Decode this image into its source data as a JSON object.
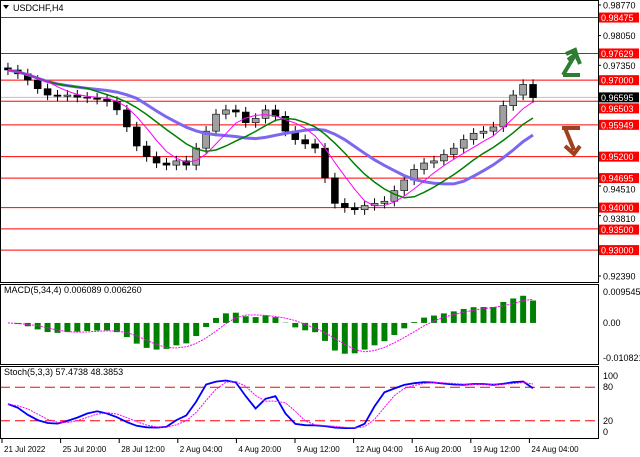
{
  "chart_title": "USDCHF,H4",
  "colors": {
    "level": "#ff0000",
    "candle_bear": "#000000",
    "candle_bull": "#a0a0a0",
    "ma_slow": "#7b68ee",
    "ma_mid": "#008000",
    "ma_fast": "#ff00ff",
    "macd_hist": "#008000",
    "macd_signal": "#ff00ff",
    "stoch_main": "#0000ff",
    "stoch_signal": "#ff00ff",
    "arrow_up": "#2e7d32",
    "arrow_down": "#a0401c"
  },
  "icons": {
    "title_dropdown": "triangle-down-icon",
    "signal_up": "arrow-up-icon",
    "signal_down": "arrow-down-icon"
  },
  "price_axis": {
    "range": [
      0.9239,
      0.9877
    ],
    "ticks": [
      "0.98770",
      "0.98050",
      "0.97350",
      "0.94510",
      "0.93810",
      "0.92390"
    ],
    "levels": [
      "0.98475",
      "0.97629",
      "0.97000",
      "0.96503",
      "0.95949",
      "0.95200",
      "0.94695",
      "0.94000",
      "0.93500",
      "0.93000"
    ],
    "current_price": "0.96595"
  },
  "time_axis": [
    "21 Jul 2022",
    "25 Jul 20:00",
    "28 Jul 12:00",
    "2 Aug 04:00",
    "4 Aug 20:00",
    "9 Aug 12:00",
    "12 Aug 04:00",
    "16 Aug 20:00",
    "19 Aug 12:00",
    "24 Aug 04:00"
  ],
  "macd": {
    "label": "MACD(5,34,4) 0.006089 0.006260",
    "axis": [
      "0.009545",
      "0.00",
      "-0.010821"
    ],
    "range": [
      -0.010821,
      0.009545
    ]
  },
  "stoch": {
    "label": "Stoch(5,3,3) 57.4738 48.3853",
    "axis": [
      "100",
      "80",
      "20",
      "0"
    ],
    "levels": [
      80,
      20
    ]
  },
  "chart_data": {
    "type": "candlestick",
    "title": "USDCHF,H4",
    "ylim": [
      0.9239,
      0.9877
    ],
    "closes": [
      0.9724,
      0.9715,
      0.97,
      0.968,
      0.9665,
      0.9662,
      0.9665,
      0.966,
      0.9658,
      0.9655,
      0.965,
      0.963,
      0.959,
      0.9545,
      0.952,
      0.9505,
      0.95,
      0.951,
      0.95,
      0.954,
      0.958,
      0.962,
      0.963,
      0.9625,
      0.96,
      0.961,
      0.963,
      0.9615,
      0.958,
      0.956,
      0.955,
      0.954,
      0.947,
      0.941,
      0.94,
      0.9395,
      0.9405,
      0.941,
      0.9415,
      0.944,
      0.9465,
      0.949,
      0.9505,
      0.951,
      0.9525,
      0.954,
      0.956,
      0.9575,
      0.958,
      0.959,
      0.964,
      0.9665,
      0.969,
      0.9659
    ]
  }
}
